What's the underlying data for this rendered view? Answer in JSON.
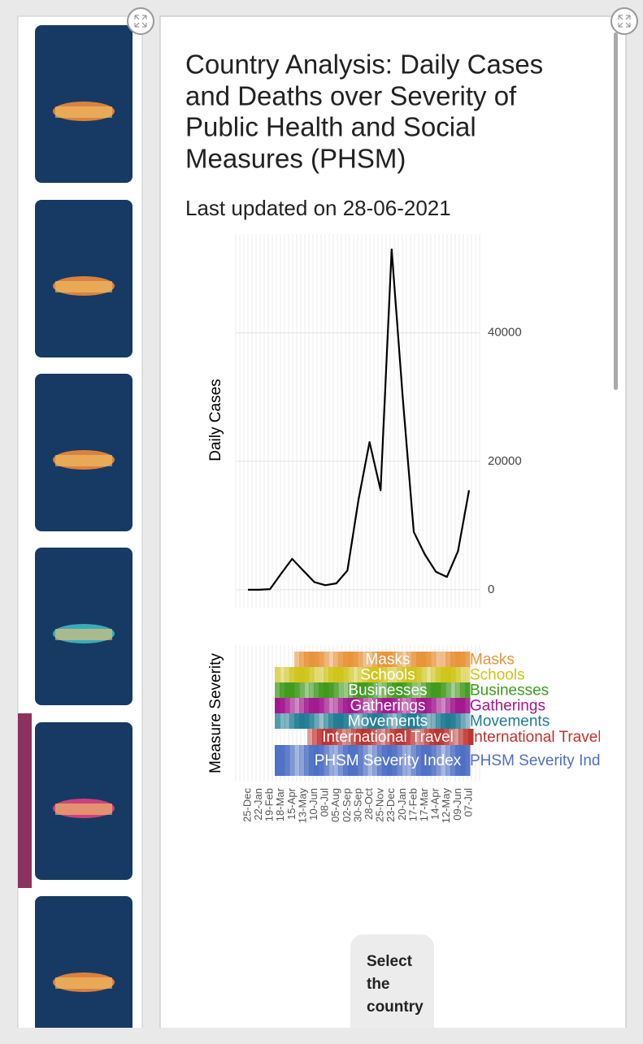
{
  "header": {
    "title": [
      "Country Analysis: Daily Cases",
      "and Deaths over Severity of",
      "Public Health and Social",
      "Measures (PHSM)"
    ],
    "subtitle": "Last updated on 28-06-2021"
  },
  "chart": {
    "type": "line",
    "y_label": "Daily Cases",
    "categories": [
      "25-Dec",
      "22-Jan",
      "19-Feb",
      "18-Mar",
      "15-Apr",
      "13-May",
      "10-Jun",
      "08-Jul",
      "05-Aug",
      "02-Sep",
      "30-Sep",
      "28-Oct",
      "25-Nov",
      "23-Dec",
      "20-Jan",
      "17-Feb",
      "17-Mar",
      "14-Apr",
      "12-May",
      "09-Jun",
      "07-Jul"
    ],
    "values": [
      0,
      0,
      100,
      2500,
      4800,
      3000,
      1200,
      700,
      1000,
      3000,
      14000,
      23000,
      15500,
      53000,
      30000,
      9000,
      5500,
      2800,
      2000,
      6000,
      15500
    ],
    "color": "#000000",
    "ylim": [
      -2800,
      55400
    ],
    "yticks": [
      0,
      20000,
      40000
    ],
    "grid": true
  },
  "severity": {
    "y_label": "Measure Severity",
    "rows": [
      {
        "name": "Masks",
        "color": "#e8943a"
      },
      {
        "name": "Schools",
        "color": "#cfc417"
      },
      {
        "name": "Businesses",
        "color": "#3f9a1c"
      },
      {
        "name": "Gatherings",
        "color": "#a3168f"
      },
      {
        "name": "Movements",
        "color": "#1f7c93"
      },
      {
        "name": "International Travel",
        "color": "#c0322d"
      },
      {
        "name": "PHSM Severity Index",
        "color": "#4e6fc4"
      }
    ]
  },
  "button": {
    "label": [
      "Select",
      "the",
      "country"
    ]
  }
}
